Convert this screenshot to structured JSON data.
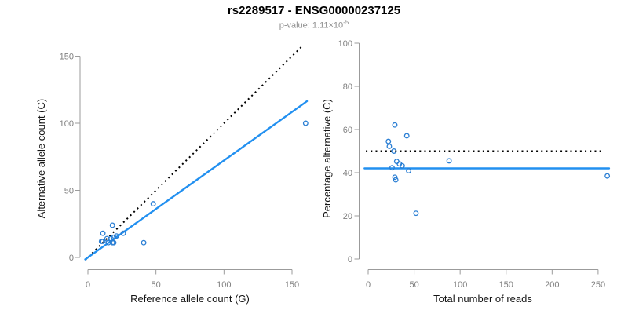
{
  "header": {
    "title": "rs2289517 - ENSG00000237125",
    "pvalue_text": "p-value: 1.11×10",
    "pvalue_exponent": "-5"
  },
  "colors": {
    "point_blue": "#2b7fd4",
    "line_blue": "#2290f0",
    "dotted_black": "#000000",
    "axis_gray": "#9b9b9b",
    "tick_label_gray": "#7f7f7f",
    "subtitle_gray": "#8c8c8c",
    "title_black": "#000000"
  },
  "chart_data": [
    {
      "type": "scatter",
      "panel": "left",
      "xlabel": "Reference allele count (G)",
      "ylabel": "Alternative allele count (C)",
      "xlim": [
        0,
        150
      ],
      "ylim": [
        0,
        150
      ],
      "xticks": [
        0,
        50,
        100,
        150
      ],
      "yticks": [
        0,
        50,
        100,
        150
      ],
      "grid": false,
      "legend": "none",
      "points": [
        [
          11,
          18
        ],
        [
          18,
          24
        ],
        [
          10,
          12
        ],
        [
          11,
          12
        ],
        [
          14,
          14
        ],
        [
          15,
          11
        ],
        [
          17,
          14
        ],
        [
          19,
          15
        ],
        [
          21,
          16
        ],
        [
          26,
          18
        ],
        [
          48,
          40
        ],
        [
          18,
          11
        ],
        [
          19,
          11
        ],
        [
          41,
          11
        ],
        [
          160,
          100
        ]
      ],
      "lines": [
        {
          "name": "identity-line",
          "style": "dotted",
          "color": "#000000",
          "slope": 1,
          "intercept": 0,
          "x_range": [
            -2,
            158
          ]
        },
        {
          "name": "regression-line",
          "style": "solid",
          "color": "#2290f0",
          "slope": 0.723,
          "intercept": 0,
          "x_range": [
            -2,
            161
          ]
        }
      ]
    },
    {
      "type": "scatter",
      "panel": "right",
      "xlabel": "Total number of reads",
      "ylabel": "Percentage alternative (C)",
      "xlim": [
        0,
        250
      ],
      "ylim": [
        0,
        100
      ],
      "xticks": [
        0,
        50,
        100,
        150,
        200,
        250
      ],
      "yticks": [
        0,
        20,
        40,
        60,
        80,
        100
      ],
      "grid": false,
      "legend": "none",
      "points": [
        [
          29,
          62.1
        ],
        [
          42,
          57.1
        ],
        [
          22,
          54.5
        ],
        [
          23,
          52.2
        ],
        [
          28,
          50.0
        ],
        [
          26,
          42.3
        ],
        [
          31,
          45.2
        ],
        [
          34,
          44.1
        ],
        [
          37,
          43.2
        ],
        [
          44,
          40.9
        ],
        [
          88,
          45.5
        ],
        [
          29,
          37.9
        ],
        [
          30,
          36.7
        ],
        [
          52,
          21.2
        ],
        [
          260,
          38.5
        ]
      ],
      "lines": [
        {
          "name": "expected-50pct-line",
          "style": "dotted",
          "color": "#000000",
          "y": 50,
          "x_range": [
            -2.5,
            255
          ]
        },
        {
          "name": "mean-pct-line",
          "style": "solid",
          "color": "#2290f0",
          "y": 42,
          "x_range": [
            -4,
            262
          ]
        }
      ]
    }
  ]
}
